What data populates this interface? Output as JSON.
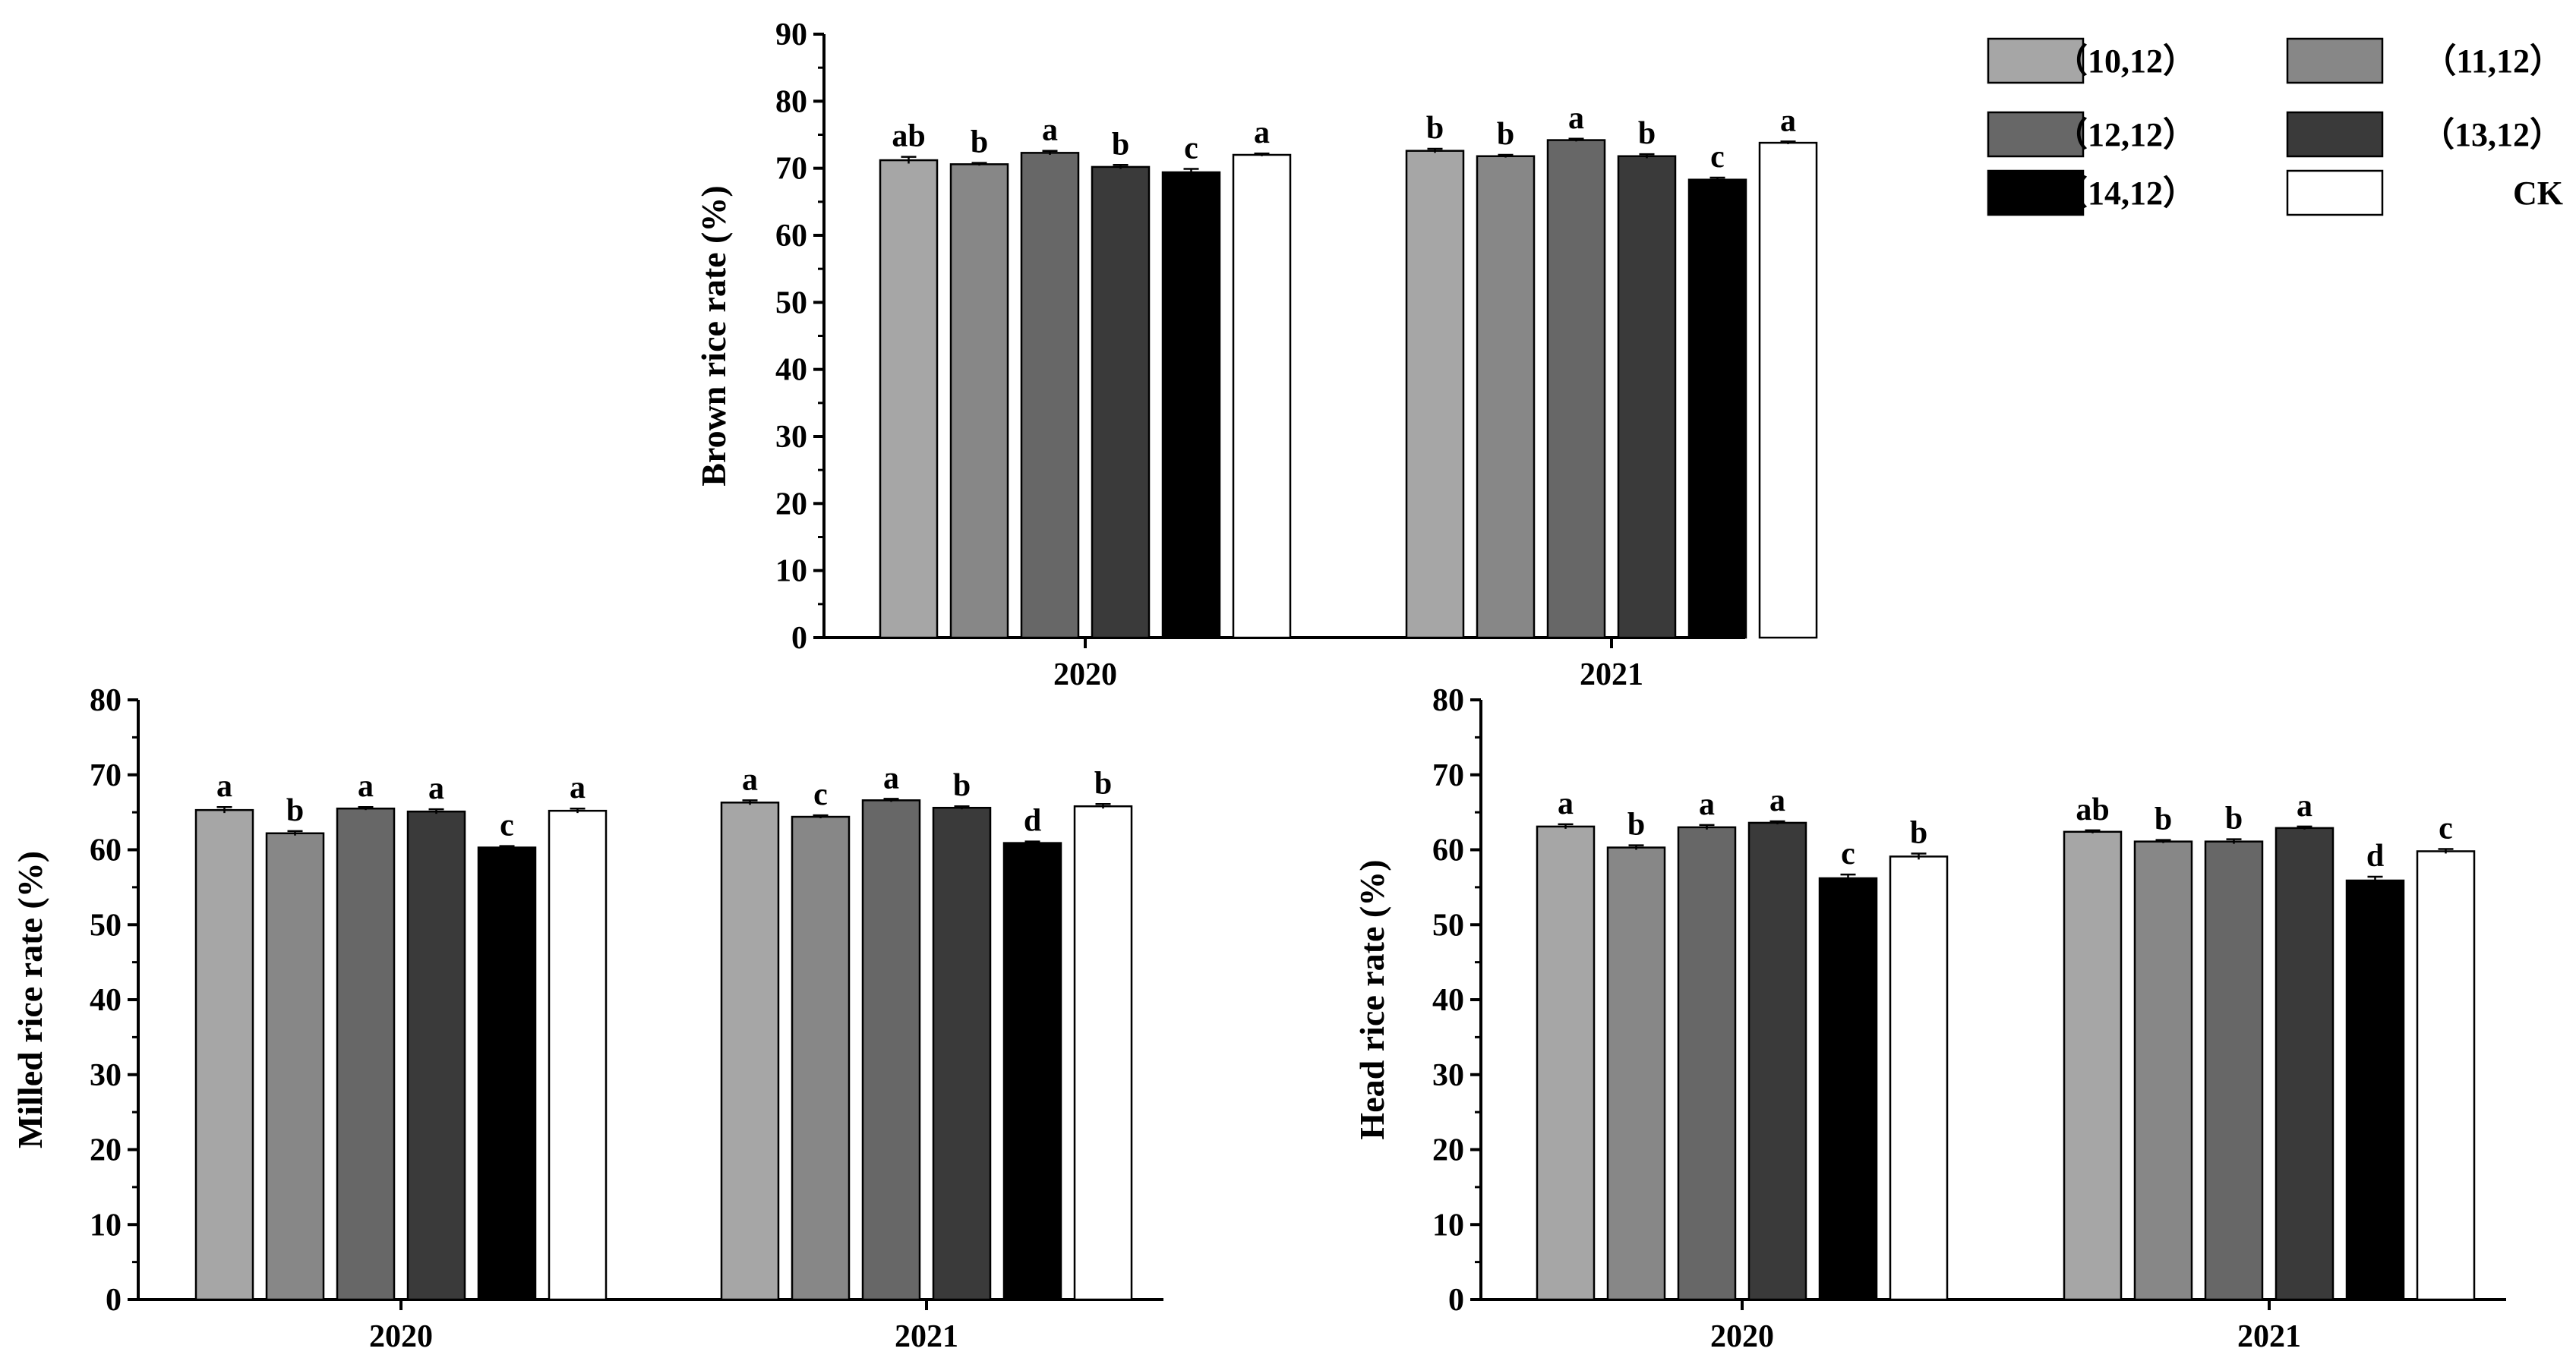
{
  "legend": {
    "items": [
      {
        "label": "（10,12）",
        "color": "#a6a6a6"
      },
      {
        "label": "（11,12）",
        "color": "#878787"
      },
      {
        "label": "（12,12）",
        "color": "#676767"
      },
      {
        "label": "（13,12）",
        "color": "#3a3a3a"
      },
      {
        "label": "（14,12）",
        "color": "#000000"
      },
      {
        "label": "CK",
        "color": "#ffffff"
      }
    ]
  },
  "chart_data": [
    {
      "type": "bar",
      "title": "",
      "xlabel": "",
      "ylabel": "Brown rice rate (%)",
      "categories": [
        "2020",
        "2021"
      ],
      "ylim": [
        0,
        90
      ],
      "yticks": [
        "0",
        "10",
        "20",
        "30",
        "40",
        "50",
        "60",
        "70",
        "80",
        "90"
      ],
      "series": [
        {
          "name": "（10,12）",
          "values": [
            71.2,
            72.6
          ],
          "errors": [
            0.5,
            0.3
          ],
          "letters": [
            "ab",
            "b"
          ]
        },
        {
          "name": "（11,12）",
          "values": [
            70.6,
            71.8
          ],
          "errors": [
            0.2,
            0.2
          ],
          "letters": [
            "b",
            "b"
          ]
        },
        {
          "name": "（12,12）",
          "values": [
            72.3,
            74.2
          ],
          "errors": [
            0.3,
            0.2
          ],
          "letters": [
            "a",
            "a"
          ]
        },
        {
          "name": "（13,12）",
          "values": [
            70.2,
            71.8
          ],
          "errors": [
            0.3,
            0.3
          ],
          "letters": [
            "b",
            "b"
          ]
        },
        {
          "name": "（14,12）",
          "values": [
            69.4,
            68.3
          ],
          "errors": [
            0.5,
            0.3
          ],
          "letters": [
            "c",
            "c"
          ]
        },
        {
          "name": "CK",
          "values": [
            72.0,
            73.8
          ],
          "errors": [
            0.2,
            0.2
          ],
          "letters": [
            "a",
            "a"
          ]
        }
      ]
    },
    {
      "type": "bar",
      "title": "",
      "xlabel": "",
      "ylabel": "Milled rice rate (%)",
      "categories": [
        "2020",
        "2021"
      ],
      "ylim": [
        0,
        80
      ],
      "yticks": [
        "0",
        "10",
        "20",
        "30",
        "40",
        "50",
        "60",
        "70",
        "80"
      ],
      "series": [
        {
          "name": "（10,12）",
          "values": [
            65.3,
            66.3
          ],
          "errors": [
            0.4,
            0.3
          ],
          "letters": [
            "a",
            "a"
          ]
        },
        {
          "name": "（11,12）",
          "values": [
            62.2,
            64.4
          ],
          "errors": [
            0.3,
            0.2
          ],
          "letters": [
            "b",
            "c"
          ]
        },
        {
          "name": "（12,12）",
          "values": [
            65.5,
            66.6
          ],
          "errors": [
            0.2,
            0.2
          ],
          "letters": [
            "a",
            "a"
          ]
        },
        {
          "name": "（13,12）",
          "values": [
            65.1,
            65.6
          ],
          "errors": [
            0.3,
            0.2
          ],
          "letters": [
            "a",
            "b"
          ]
        },
        {
          "name": "（14,12）",
          "values": [
            60.3,
            60.9
          ],
          "errors": [
            0.2,
            0.2
          ],
          "letters": [
            "c",
            "d"
          ]
        },
        {
          "name": "CK",
          "values": [
            65.2,
            65.8
          ],
          "errors": [
            0.3,
            0.3
          ],
          "letters": [
            "a",
            "b"
          ]
        }
      ]
    },
    {
      "type": "bar",
      "title": "",
      "xlabel": "",
      "ylabel": "Head rice rate (%)",
      "categories": [
        "2020",
        "2021"
      ],
      "ylim": [
        0,
        80
      ],
      "yticks": [
        "0",
        "10",
        "20",
        "30",
        "40",
        "50",
        "60",
        "70",
        "80"
      ],
      "series": [
        {
          "name": "（10,12）",
          "values": [
            63.1,
            62.4
          ],
          "errors": [
            0.3,
            0.2
          ],
          "letters": [
            "a",
            "ab"
          ]
        },
        {
          "name": "（11,12）",
          "values": [
            60.3,
            61.1
          ],
          "errors": [
            0.3,
            0.2
          ],
          "letters": [
            "b",
            "b"
          ]
        },
        {
          "name": "（12,12）",
          "values": [
            63.0,
            61.1
          ],
          "errors": [
            0.3,
            0.3
          ],
          "letters": [
            "a",
            "b"
          ]
        },
        {
          "name": "（13,12）",
          "values": [
            63.6,
            62.9
          ],
          "errors": [
            0.2,
            0.2
          ],
          "letters": [
            "a",
            "a"
          ]
        },
        {
          "name": "（14,12）",
          "values": [
            56.2,
            55.9
          ],
          "errors": [
            0.5,
            0.5
          ],
          "letters": [
            "c",
            "d"
          ]
        },
        {
          "name": "CK",
          "values": [
            59.1,
            59.8
          ],
          "errors": [
            0.4,
            0.3
          ],
          "letters": [
            "b",
            "c"
          ]
        }
      ]
    }
  ]
}
